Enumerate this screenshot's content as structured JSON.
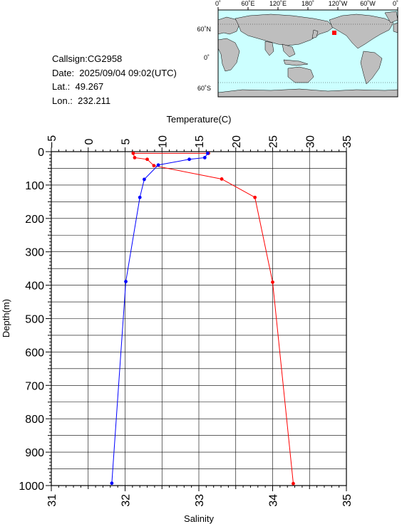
{
  "station": {
    "callsign": "Callsign:CG2958",
    "date": "Date:  2025/09/04 09:02(UTC)",
    "lat": "Lat.:  49.267",
    "lon": "Lon.:  232.211"
  },
  "map": {
    "lon_labels": [
      "0˚",
      "60˚E",
      "120˚E",
      "180˚",
      "120˚W",
      "60˚W",
      "0˚"
    ],
    "lat_labels": [
      "60˚N",
      "0˚",
      "60˚S"
    ],
    "ocean_color": "#ccffff",
    "land_color": "#bebebe",
    "marker_color": "#ff0000"
  },
  "chart_data": {
    "type": "line",
    "depth_axis": {
      "label": "Depth(m)",
      "range": [
        0,
        1000
      ],
      "ticks": [
        "0",
        "100",
        "200",
        "300",
        "400",
        "500",
        "600",
        "700",
        "800",
        "900",
        "1000"
      ],
      "inverted": true
    },
    "temperature_axis": {
      "label": "Temperature(C)",
      "range": [
        -5,
        35
      ],
      "ticks": [
        "−5",
        "0",
        "5",
        "10",
        "15",
        "20",
        "25",
        "30",
        "35"
      ]
    },
    "salinity_axis": {
      "label": "Salinity",
      "range": [
        31,
        35
      ],
      "ticks": [
        "31",
        "32",
        "33",
        "34",
        "35"
      ]
    },
    "grid": true,
    "series": [
      {
        "axis": "temperature",
        "color": "#ff0000",
        "points": [
          {
            "value": 16.3,
            "depth": 5
          },
          {
            "value": 6.1,
            "depth": 5
          },
          {
            "value": 6.3,
            "depth": 18
          },
          {
            "value": 8.0,
            "depth": 23
          },
          {
            "value": 8.9,
            "depth": 42
          },
          {
            "value": 18.1,
            "depth": 82
          },
          {
            "value": 22.6,
            "depth": 137
          },
          {
            "value": 25.0,
            "depth": 391
          },
          {
            "value": 27.8,
            "depth": 994
          }
        ]
      },
      {
        "axis": "salinity",
        "color": "#0000ff",
        "points": [
          {
            "value": 33.12,
            "depth": 5
          },
          {
            "value": 33.08,
            "depth": 18
          },
          {
            "value": 32.87,
            "depth": 23
          },
          {
            "value": 32.45,
            "depth": 40
          },
          {
            "value": 32.26,
            "depth": 83
          },
          {
            "value": 32.2,
            "depth": 137
          },
          {
            "value": 32.01,
            "depth": 389
          },
          {
            "value": 31.82,
            "depth": 993
          }
        ]
      }
    ]
  }
}
